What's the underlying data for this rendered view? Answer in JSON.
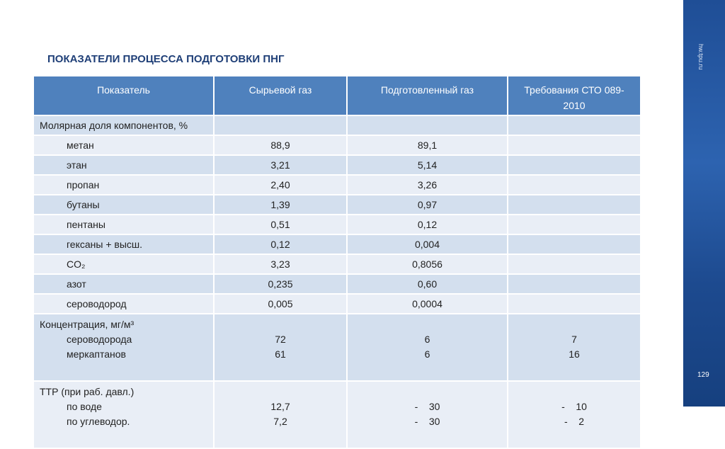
{
  "title": "ПОКАЗАТЕЛИ ПРОЦЕССА ПОДГОТОВКИ ПНГ",
  "side_text": "hw.tpu.ru",
  "page_number": "129",
  "table": {
    "header": [
      "Показатель",
      "Сырьевой газ",
      "Подготовленный газ",
      "Требования СТО 089-2010"
    ],
    "rows": [
      [
        "Молярная доля компонентов, %"
      ],
      [
        "метан",
        "88,9",
        "89,1"
      ],
      [
        "этан",
        "3,21",
        "5,14"
      ],
      [
        "пропан",
        "2,40",
        "3,26"
      ],
      [
        "бутаны",
        "1,39",
        "0,97"
      ],
      [
        "пентаны",
        "0,51",
        "0,12"
      ],
      [
        "гексаны + высш.",
        "0,12",
        "0,004"
      ],
      [
        "CO₂",
        "3,23",
        "0,8056"
      ],
      [
        "азот",
        "0,235",
        "0,60"
      ],
      [
        "сероводород",
        "0,005",
        "0,0004"
      ],
      [
        [
          "Концентрация, мг/м³",
          "сероводорода",
          "меркаптанов"
        ],
        [
          "72",
          "61"
        ],
        [
          "6",
          "6"
        ],
        [
          "7",
          "16"
        ]
      ],
      [
        [
          "ТТР (при раб. давл.)",
          "по воде",
          "по углеводор."
        ],
        [
          "12,7",
          "7,2"
        ],
        [
          "-    30",
          "-    30"
        ],
        [
          "-    10",
          "-    2"
        ]
      ]
    ]
  }
}
